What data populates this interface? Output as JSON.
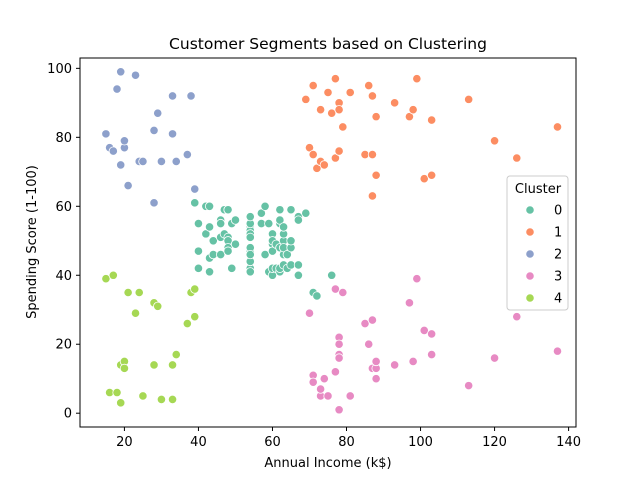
{
  "chart_data": {
    "type": "scatter",
    "title": "Customer Segments based on Clustering",
    "xlabel": "Annual Income (k$)",
    "ylabel": "Spending Score (1-100)",
    "xlim": [
      8,
      142
    ],
    "ylim": [
      -4,
      103
    ],
    "xticks": [
      20,
      40,
      60,
      80,
      100,
      120,
      140
    ],
    "yticks": [
      0,
      20,
      40,
      60,
      80,
      100
    ],
    "grid": false,
    "legend": {
      "title": "Cluster",
      "placement": "right"
    },
    "series": [
      {
        "name": "0",
        "color": "#66c2a5",
        "points": [
          [
            39,
            61
          ],
          [
            40,
            55
          ],
          [
            40,
            47
          ],
          [
            40,
            42
          ],
          [
            42,
            60
          ],
          [
            42,
            52
          ],
          [
            43,
            60
          ],
          [
            43,
            54
          ],
          [
            43,
            45
          ],
          [
            43,
            41
          ],
          [
            44,
            50
          ],
          [
            44,
            46
          ],
          [
            46,
            51
          ],
          [
            46,
            46
          ],
          [
            46,
            56
          ],
          [
            46,
            55
          ],
          [
            47,
            52
          ],
          [
            47,
            59
          ],
          [
            48,
            51
          ],
          [
            48,
            59
          ],
          [
            48,
            50
          ],
          [
            48,
            48
          ],
          [
            48,
            59
          ],
          [
            48,
            47
          ],
          [
            49,
            55
          ],
          [
            49,
            42
          ],
          [
            50,
            49
          ],
          [
            50,
            56
          ],
          [
            54,
            47
          ],
          [
            54,
            54
          ],
          [
            54,
            53
          ],
          [
            54,
            48
          ],
          [
            54,
            52
          ],
          [
            54,
            42
          ],
          [
            54,
            51
          ],
          [
            54,
            55
          ],
          [
            54,
            41
          ],
          [
            54,
            44
          ],
          [
            54,
            57
          ],
          [
            54,
            46
          ],
          [
            57,
            58
          ],
          [
            57,
            55
          ],
          [
            58,
            60
          ],
          [
            58,
            46
          ],
          [
            59,
            55
          ],
          [
            59,
            41
          ],
          [
            60,
            49
          ],
          [
            60,
            40
          ],
          [
            60,
            42
          ],
          [
            60,
            52
          ],
          [
            60,
            47
          ],
          [
            60,
            50
          ],
          [
            61,
            42
          ],
          [
            61,
            49
          ],
          [
            62,
            41
          ],
          [
            62,
            48
          ],
          [
            62,
            59
          ],
          [
            62,
            55
          ],
          [
            62,
            56
          ],
          [
            62,
            42
          ],
          [
            63,
            50
          ],
          [
            63,
            46
          ],
          [
            63,
            43
          ],
          [
            63,
            48
          ],
          [
            63,
            52
          ],
          [
            63,
            54
          ],
          [
            64,
            42
          ],
          [
            64,
            46
          ],
          [
            65,
            48
          ],
          [
            65,
            50
          ],
          [
            65,
            43
          ],
          [
            65,
            59
          ],
          [
            67,
            43
          ],
          [
            67,
            57
          ],
          [
            67,
            56
          ],
          [
            67,
            40
          ],
          [
            69,
            58
          ],
          [
            71,
            35
          ],
          [
            72,
            34
          ],
          [
            76,
            40
          ]
        ]
      },
      {
        "name": "1",
        "color": "#fc8d62",
        "points": [
          [
            69,
            91
          ],
          [
            70,
            77
          ],
          [
            71,
            95
          ],
          [
            71,
            75
          ],
          [
            72,
            71
          ],
          [
            73,
            88
          ],
          [
            73,
            73
          ],
          [
            74,
            72
          ],
          [
            75,
            93
          ],
          [
            76,
            87
          ],
          [
            77,
            97
          ],
          [
            77,
            74
          ],
          [
            78,
            90
          ],
          [
            78,
            76
          ],
          [
            78,
            88
          ],
          [
            78,
            76
          ],
          [
            79,
            83
          ],
          [
            81,
            93
          ],
          [
            85,
            75
          ],
          [
            86,
            95
          ],
          [
            87,
            63
          ],
          [
            87,
            75
          ],
          [
            87,
            92
          ],
          [
            88,
            86
          ],
          [
            88,
            69
          ],
          [
            93,
            90
          ],
          [
            97,
            86
          ],
          [
            98,
            88
          ],
          [
            99,
            97
          ],
          [
            101,
            68
          ],
          [
            103,
            85
          ],
          [
            103,
            69
          ],
          [
            113,
            91
          ],
          [
            120,
            79
          ],
          [
            126,
            74
          ],
          [
            137,
            83
          ]
        ]
      },
      {
        "name": "2",
        "color": "#8da0cb",
        "points": [
          [
            15,
            81
          ],
          [
            16,
            77
          ],
          [
            17,
            76
          ],
          [
            18,
            94
          ],
          [
            19,
            72
          ],
          [
            19,
            99
          ],
          [
            20,
            77
          ],
          [
            20,
            79
          ],
          [
            21,
            66
          ],
          [
            23,
            98
          ],
          [
            24,
            73
          ],
          [
            25,
            73
          ],
          [
            28,
            82
          ],
          [
            28,
            61
          ],
          [
            29,
            87
          ],
          [
            30,
            73
          ],
          [
            33,
            92
          ],
          [
            33,
            81
          ],
          [
            34,
            73
          ],
          [
            37,
            75
          ],
          [
            38,
            92
          ],
          [
            39,
            65
          ]
        ]
      },
      {
        "name": "3",
        "color": "#e78ac3",
        "points": [
          [
            70,
            29
          ],
          [
            71,
            11
          ],
          [
            71,
            9
          ],
          [
            73,
            5
          ],
          [
            73,
            7
          ],
          [
            74,
            10
          ],
          [
            75,
            5
          ],
          [
            77,
            12
          ],
          [
            77,
            36
          ],
          [
            78,
            22
          ],
          [
            78,
            17
          ],
          [
            78,
            20
          ],
          [
            78,
            16
          ],
          [
            78,
            1
          ],
          [
            79,
            35
          ],
          [
            81,
            5
          ],
          [
            85,
            26
          ],
          [
            86,
            20
          ],
          [
            87,
            27
          ],
          [
            87,
            13
          ],
          [
            88,
            10
          ],
          [
            88,
            13
          ],
          [
            88,
            15
          ],
          [
            93,
            14
          ],
          [
            97,
            32
          ],
          [
            98,
            15
          ],
          [
            99,
            39
          ],
          [
            101,
            24
          ],
          [
            103,
            17
          ],
          [
            103,
            23
          ],
          [
            113,
            8
          ],
          [
            120,
            16
          ],
          [
            126,
            28
          ],
          [
            137,
            18
          ]
        ]
      },
      {
        "name": "4",
        "color": "#a6d854",
        "points": [
          [
            15,
            39
          ],
          [
            16,
            6
          ],
          [
            17,
            40
          ],
          [
            18,
            6
          ],
          [
            19,
            3
          ],
          [
            19,
            14
          ],
          [
            20,
            15
          ],
          [
            20,
            13
          ],
          [
            21,
            35
          ],
          [
            23,
            29
          ],
          [
            24,
            35
          ],
          [
            25,
            5
          ],
          [
            28,
            14
          ],
          [
            28,
            32
          ],
          [
            29,
            31
          ],
          [
            30,
            4
          ],
          [
            33,
            4
          ],
          [
            33,
            14
          ],
          [
            34,
            17
          ],
          [
            37,
            26
          ],
          [
            38,
            35
          ],
          [
            39,
            36
          ],
          [
            39,
            28
          ]
        ]
      }
    ]
  }
}
